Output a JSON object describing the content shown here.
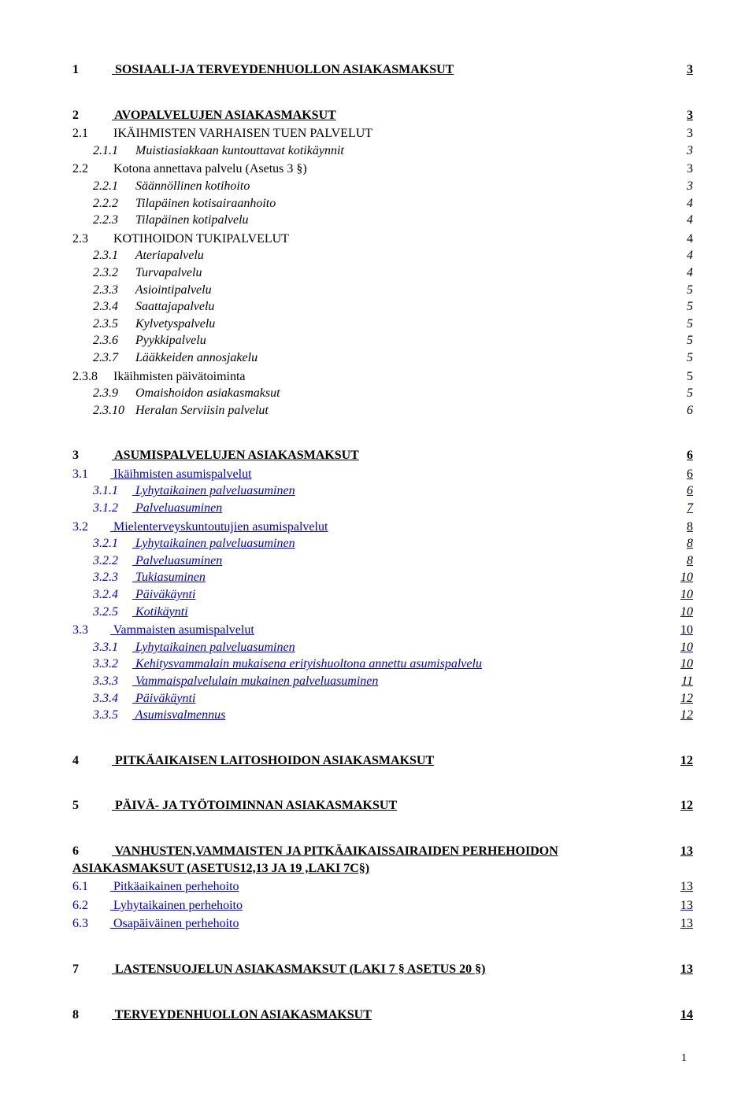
{
  "colors": {
    "link": "#0000cc",
    "text": "#000000",
    "background": "#ffffff"
  },
  "typography": {
    "font_family": "Times New Roman",
    "base_size_pt": 12,
    "heading_size_pt": 12,
    "h1_bold": true,
    "h3_italic": true
  },
  "page_number": "1",
  "toc": [
    {
      "level": 1,
      "link": true,
      "num": "1",
      "text": "SOSIAALI-JA TERVEYDENHUOLLON ASIAKASMAKSUT",
      "page": "3"
    },
    {
      "level": 1,
      "link": true,
      "num": "2",
      "text": "AVOPALVELUJEN ASIAKASMAKSUT",
      "page": "3"
    },
    {
      "level": 2,
      "link": false,
      "num": "2.1",
      "text": "IKÄIHMISTEN VARHAISEN TUEN PALVELUT",
      "page": "3"
    },
    {
      "level": 3,
      "link": false,
      "num": "2.1.1",
      "text": "Muistiasiakkaan kuntouttavat kotikäynnit",
      "page": "3"
    },
    {
      "level": 2,
      "link": false,
      "num": "2.2",
      "text": "Kotona annettava palvelu (Asetus 3 §)",
      "page": "3"
    },
    {
      "level": 3,
      "link": false,
      "num": "2.2.1",
      "text": "Säännöllinen kotihoito",
      "page": "3"
    },
    {
      "level": 3,
      "link": false,
      "num": "2.2.2",
      "text": "Tilapäinen kotisairaanhoito",
      "page": "4"
    },
    {
      "level": 3,
      "link": false,
      "num": "2.2.3",
      "text": "Tilapäinen kotipalvelu",
      "page": "4"
    },
    {
      "level": 2,
      "link": false,
      "num": "2.3",
      "text": "KOTIHOIDON TUKIPALVELUT",
      "page": "4"
    },
    {
      "level": 3,
      "link": false,
      "num": "2.3.1",
      "text": "Ateriapalvelu",
      "page": "4"
    },
    {
      "level": 3,
      "link": false,
      "num": "2.3.2",
      "text": "Turvapalvelu",
      "page": "4"
    },
    {
      "level": 3,
      "link": false,
      "num": "2.3.3",
      "text": "Asiointipalvelu",
      "page": "5"
    },
    {
      "level": 3,
      "link": false,
      "num": "2.3.4",
      "text": "Saattajapalvelu",
      "page": "5"
    },
    {
      "level": 3,
      "link": false,
      "num": "2.3.5",
      "text": "Kylvetyspalvelu",
      "page": "5"
    },
    {
      "level": 3,
      "link": false,
      "num": "2.3.6",
      "text": "Pyykkipalvelu",
      "page": "5"
    },
    {
      "level": 3,
      "link": false,
      "num": "2.3.7",
      "text": "Lääkkeiden annosjakelu",
      "page": "5"
    },
    {
      "level": 2,
      "link": false,
      "num": "2.3.8",
      "text": "Ikäihmisten päivätoiminta",
      "page": "5"
    },
    {
      "level": 3,
      "link": false,
      "num": "2.3.9",
      "text": "Omaishoidon asiakasmaksut",
      "page": "5"
    },
    {
      "level": 3,
      "link": false,
      "num": "2.3.10",
      "text": "Heralan Serviisin palvelut",
      "page": "6"
    },
    {
      "level": 1,
      "link": true,
      "num": "3",
      "text": "ASUMISPALVELUJEN ASIAKASMAKSUT",
      "page": "6"
    },
    {
      "level": 2,
      "link": true,
      "num": "3.1",
      "text": "Ikäihmisten asumispalvelut",
      "page": "6"
    },
    {
      "level": 3,
      "link": true,
      "num": "3.1.1",
      "text": "Lyhytaikainen palveluasuminen",
      "page": "6"
    },
    {
      "level": 3,
      "link": true,
      "num": "3.1.2",
      "text": "Palveluasuminen",
      "page": "7"
    },
    {
      "level": 2,
      "link": true,
      "num": "3.2",
      "text": "Mielenterveyskuntoutujien asumispalvelut",
      "page": "8"
    },
    {
      "level": 3,
      "link": true,
      "num": "3.2.1",
      "text": "Lyhytaikainen palveluasuminen",
      "page": "8"
    },
    {
      "level": 3,
      "link": true,
      "num": "3.2.2",
      "text": "Palveluasuminen",
      "page": "8"
    },
    {
      "level": 3,
      "link": true,
      "num": "3.2.3",
      "text": "Tukiasuminen",
      "page": "10"
    },
    {
      "level": 3,
      "link": true,
      "num": "3.2.4",
      "text": "Päiväkäynti",
      "page": "10"
    },
    {
      "level": 3,
      "link": true,
      "num": "3.2.5",
      "text": "Kotikäynti",
      "page": "10"
    },
    {
      "level": 2,
      "link": true,
      "num": "3.3",
      "text": "Vammaisten asumispalvelut",
      "page": "10"
    },
    {
      "level": 3,
      "link": true,
      "num": "3.3.1",
      "text": "Lyhytaikainen palveluasuminen",
      "page": "10"
    },
    {
      "level": 3,
      "link": true,
      "num": "3.3.2",
      "text": "Kehitysvammalain mukaisena erityishuoltona annettu asumispalvelu",
      "page": "10"
    },
    {
      "level": 3,
      "link": true,
      "num": "3.3.3",
      "text": "Vammaispalvelulain mukainen palveluasuminen",
      "page": "11"
    },
    {
      "level": 3,
      "link": true,
      "num": "3.3.4",
      "text": "Päiväkäynti",
      "page": "12"
    },
    {
      "level": 3,
      "link": true,
      "num": "3.3.5",
      "text": "Asumisvalmennus",
      "page": "12"
    },
    {
      "level": 1,
      "link": true,
      "num": "4",
      "text": "PITKÄAIKAISEN LAITOSHOIDON ASIAKASMAKSUT",
      "page": "12"
    },
    {
      "level": 1,
      "link": true,
      "num": "5",
      "text": "PÄIVÄ- JA TYÖTOIMINNAN ASIAKASMAKSUT",
      "page": "12"
    },
    {
      "level": 1,
      "link": true,
      "num": "6",
      "text": "VANHUSTEN,VAMMAISTEN JA PITKÄAIKAISSAIRAIDEN PERHEHOIDON ASIAKASMAKSUT  (ASETUS12,13 JA 19 ,LAKI 7C§)",
      "page": "13"
    },
    {
      "level": 2,
      "link": true,
      "num": "6.1",
      "text": "Pitkäaikainen perhehoito",
      "page": "13"
    },
    {
      "level": 2,
      "link": true,
      "num": "6.2",
      "text": "Lyhytaikainen perhehoito",
      "page": "13"
    },
    {
      "level": 2,
      "link": true,
      "num": "6.3",
      "text": "Osapäiväinen perhehoito",
      "page": "13"
    },
    {
      "level": 1,
      "link": true,
      "num": "7",
      "text": "LASTENSUOJELUN ASIAKASMAKSUT (LAKI 7 § ASETUS 20 §)",
      "page": "13"
    },
    {
      "level": 1,
      "link": true,
      "num": "8",
      "text": "TERVEYDENHUOLLON ASIAKASMAKSUT",
      "page": "14"
    }
  ]
}
